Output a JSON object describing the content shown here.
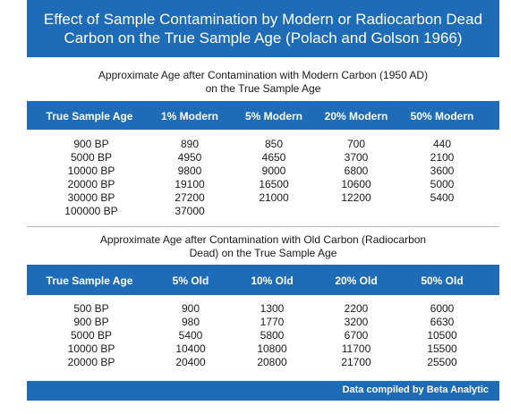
{
  "title": {
    "line1": "Effect of Sample Contamination by Modern or Radiocarbon Dead",
    "line2": "Carbon on the True Sample Age (Polach and Golson 1966)"
  },
  "colors": {
    "accent": "#1e6bb8",
    "header_text": "#ffffff",
    "divider": "#b5b5b5"
  },
  "modern": {
    "caption_line1": "Approximate Age after Contamination with Modern Carbon (1950 AD)",
    "caption_line2": "on the True Sample Age",
    "headers": [
      "True Sample Age",
      "1% Modern",
      "5% Modern",
      "20% Modern",
      "50% Modern"
    ],
    "rows": [
      [
        "900 BP",
        "890",
        "850",
        "700",
        "440"
      ],
      [
        "5000 BP",
        "4950",
        "4650",
        "3700",
        "2100"
      ],
      [
        "10000 BP",
        "9800",
        "9000",
        "6800",
        "3600"
      ],
      [
        "20000 BP",
        "19100",
        "16500",
        "10600",
        "5000"
      ],
      [
        "30000 BP",
        "27200",
        "21000",
        "12200",
        "5400"
      ],
      [
        "100000 BP",
        "37000",
        "",
        "",
        ""
      ]
    ]
  },
  "old": {
    "caption_line1": "Approximate Age after Contamination with Old Carbon (Radiocarbon",
    "caption_line2": "Dead) on the True Sample Age",
    "headers": [
      "True Sample Age",
      "5% Old",
      "10% Old",
      "20% Old",
      "50% Old"
    ],
    "rows": [
      [
        "500 BP",
        "900",
        "1300",
        "2200",
        "6000"
      ],
      [
        "900 BP",
        "980",
        "1770",
        "3200",
        "6630"
      ],
      [
        "5000 BP",
        "5400",
        "5800",
        "6700",
        "10500"
      ],
      [
        "10000 BP",
        "10400",
        "10800",
        "11700",
        "15500"
      ],
      [
        "20000 BP",
        "20400",
        "20800",
        "21700",
        "25500"
      ]
    ]
  },
  "footer": {
    "credit": "Data compiled by Beta Analytic"
  }
}
